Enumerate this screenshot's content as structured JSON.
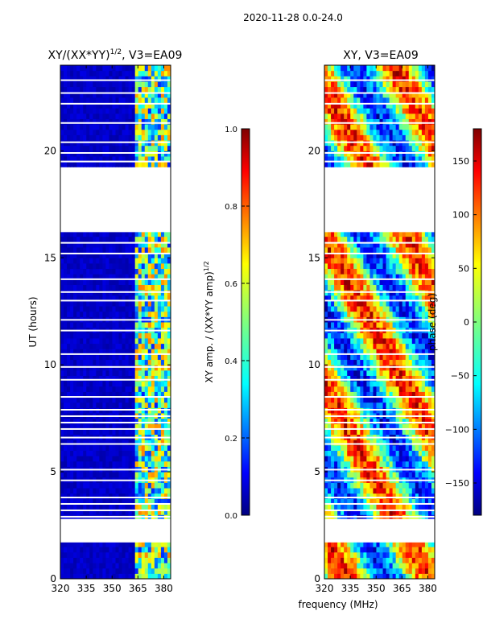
{
  "suptitle": "2020-11-28 0.0-24.0",
  "xlabel_shared": "frequency (MHz)",
  "chart_data": [
    {
      "type": "heatmap",
      "title_prefix": "XY/(XX*YY)",
      "title_exp": "1/2",
      "title_suffix": ", V3=EA09",
      "ylabel": "UT (hours)",
      "xlim": [
        320,
        384
      ],
      "ylim": [
        0,
        24
      ],
      "xticks": [
        320,
        335,
        350,
        365,
        380
      ],
      "yticks": [
        0,
        5,
        10,
        15,
        20
      ],
      "colorbar": {
        "label_prefix": "XY amp. / (XX*YY amp)",
        "label_exp": "1/2",
        "range": [
          0.0,
          1.0
        ],
        "ticks": [
          "0.0",
          "0.2",
          "0.4",
          "0.6",
          "0.8",
          "1.0"
        ],
        "colormap": "jet"
      }
    },
    {
      "type": "heatmap",
      "title": "XY, V3=EA09",
      "ylabel": "",
      "xlim": [
        320,
        384
      ],
      "ylim": [
        0,
        24
      ],
      "xticks": [
        320,
        335,
        350,
        365,
        380
      ],
      "yticks": [
        0,
        5,
        10,
        15,
        20
      ],
      "colorbar": {
        "label": "phase (deg)",
        "range": [
          -180,
          180
        ],
        "ticks": [
          "150",
          "100",
          "50",
          "0",
          "−50",
          "−100",
          "−150"
        ],
        "colormap": "jet"
      }
    }
  ],
  "data_gaps_hours": [
    [
      1.7,
      2.8
    ],
    [
      16.2,
      19.2
    ]
  ]
}
